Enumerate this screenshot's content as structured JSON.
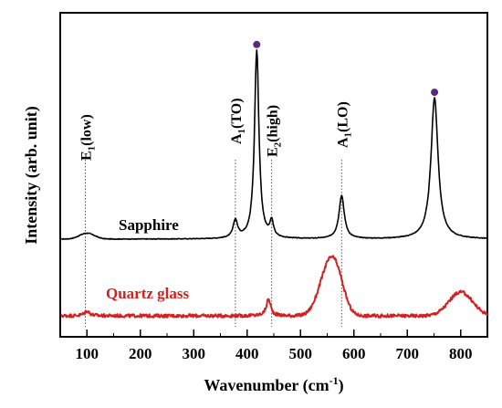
{
  "chart_data": {
    "type": "line",
    "xlabel": "Wavenumber (cm",
    "xlabel_sup": "-1",
    "xlabel_end": ")",
    "ylabel": "Intensity (arb. unit)",
    "xlim": [
      50,
      850
    ],
    "xticks": [
      100,
      200,
      300,
      400,
      500,
      600,
      700,
      800
    ],
    "grid": false,
    "series": [
      {
        "name": "Sapphire",
        "color": "#000000",
        "baseline": 0,
        "noise": 0.35,
        "bumps": [
          [
            100,
            3,
            14
          ]
        ],
        "peaks": [
          [
            378,
            9,
            5
          ],
          [
            418,
            96,
            5
          ],
          [
            446,
            8,
            4
          ],
          [
            577,
            22,
            6
          ],
          [
            751,
            72,
            8
          ]
        ]
      },
      {
        "name": "Quartz glass",
        "color": "#d42020",
        "baseline": 0,
        "noise": 1.4,
        "bumps": [
          [
            553,
            20,
            18
          ],
          [
            570,
            8,
            14
          ],
          [
            800,
            10,
            22
          ]
        ],
        "peaks": [
          [
            100,
            2,
            6
          ],
          [
            440,
            7,
            5
          ]
        ]
      }
    ],
    "annotations": [
      {
        "x": 97,
        "base": "E",
        "sub": "1",
        "tail": "(low)"
      },
      {
        "x": 378,
        "base": "A",
        "sub": "1",
        "tail": "(TO)"
      },
      {
        "x": 446,
        "base": "E",
        "sub": "2",
        "tail": "(high)"
      },
      {
        "x": 577,
        "base": "A",
        "sub": "1",
        "tail": "(LO)"
      }
    ],
    "markers": [
      {
        "x": 418,
        "color": "#5a2a7a"
      },
      {
        "x": 751,
        "color": "#5a2a7a"
      }
    ]
  }
}
